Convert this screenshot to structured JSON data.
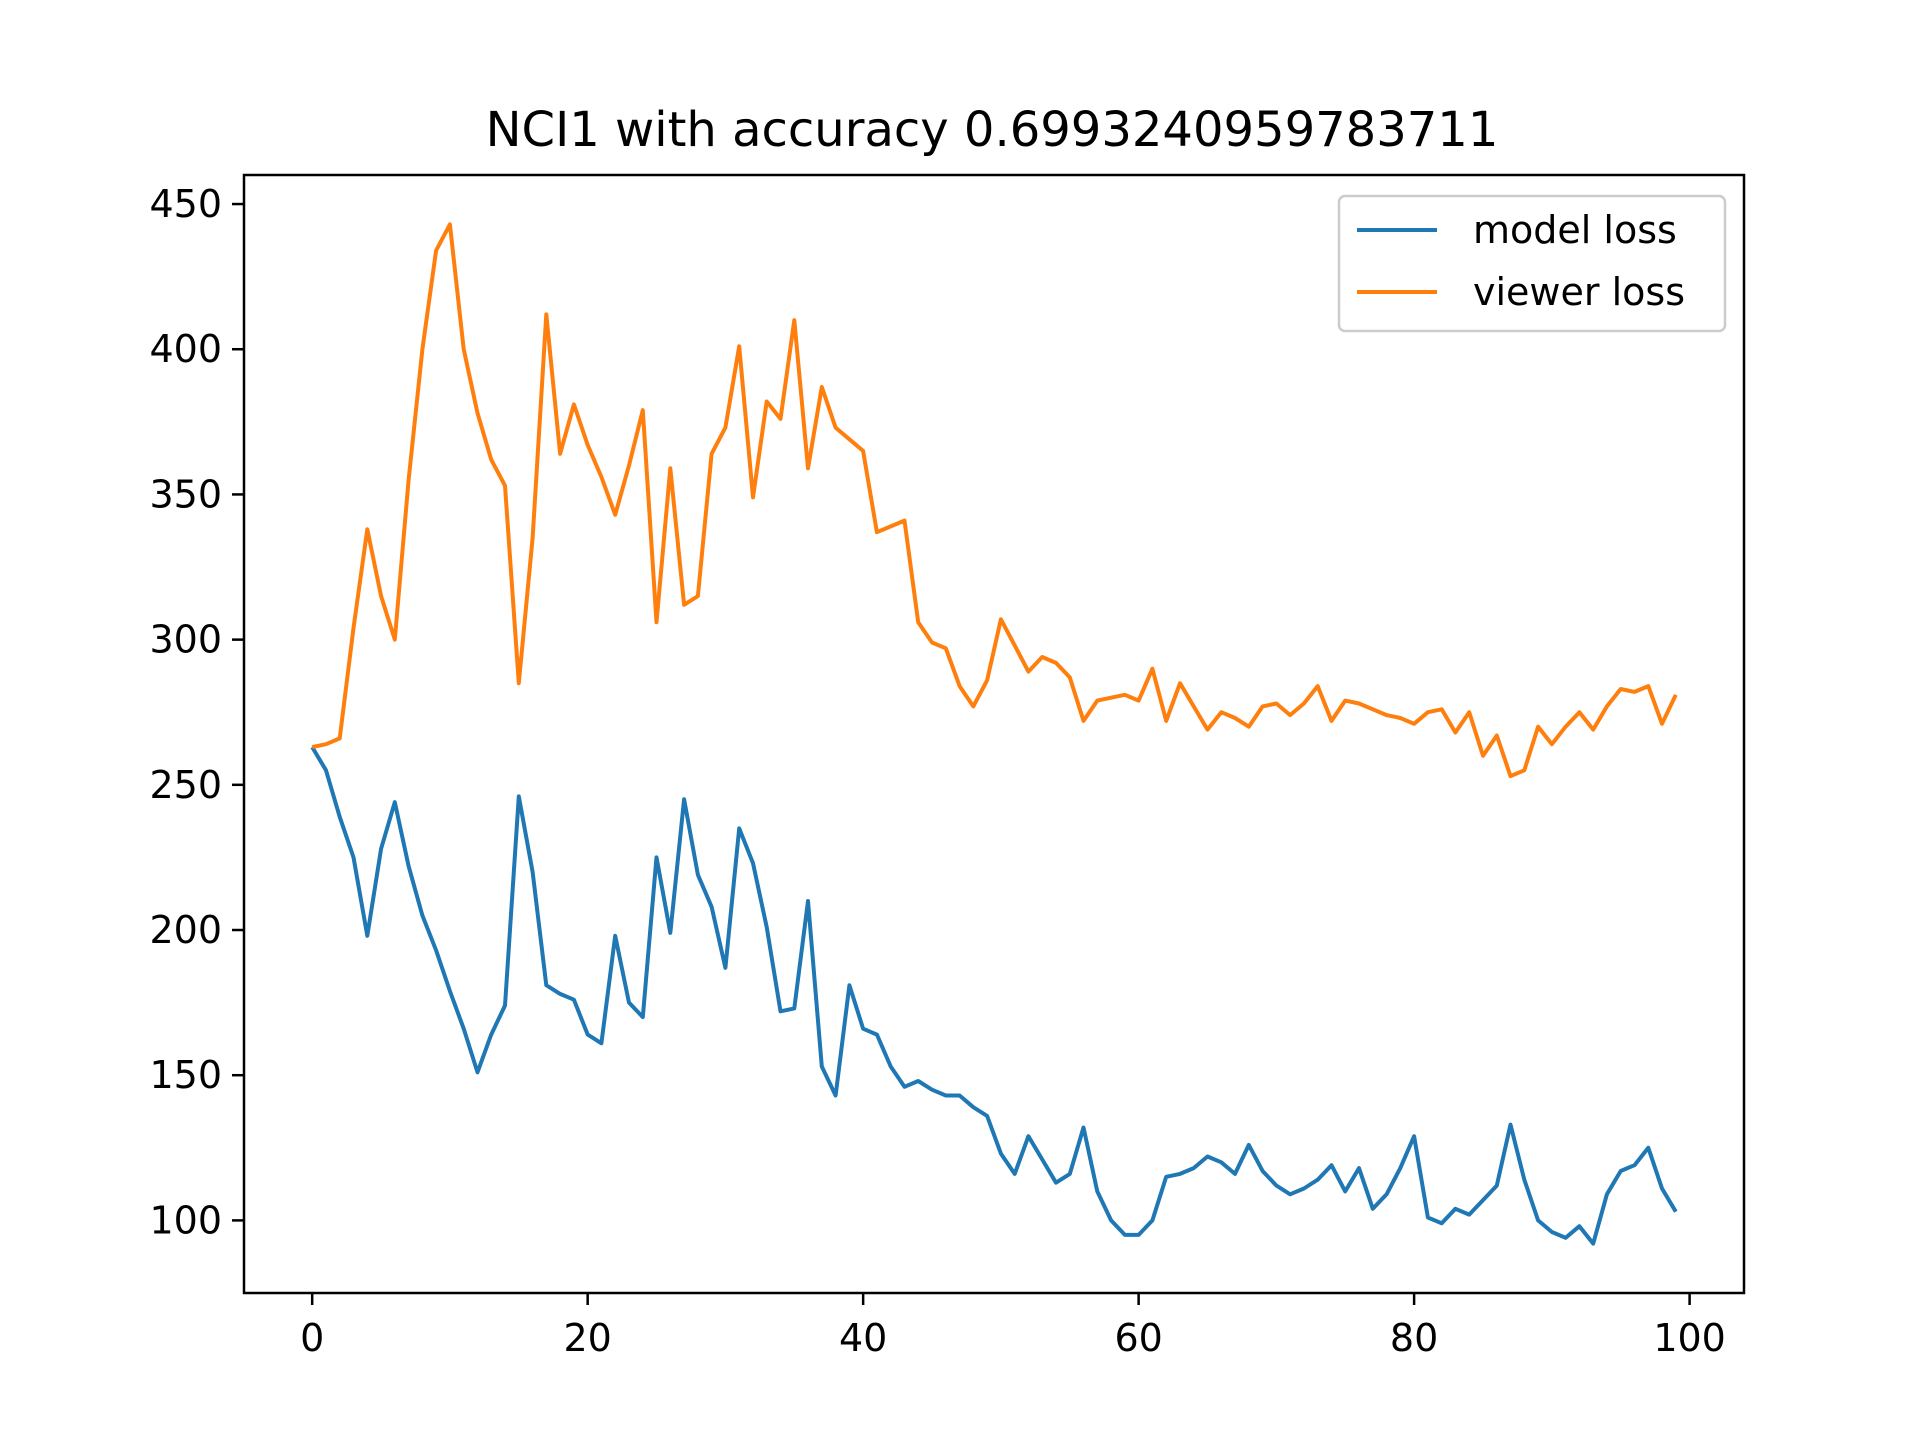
{
  "chart_data": {
    "type": "line",
    "title": "NCI1 with accuracy 0.6993240959783711",
    "xlabel": "",
    "ylabel": "",
    "xlim": [
      -4.95,
      103.95
    ],
    "ylim": [
      75,
      460
    ],
    "xticks": [
      0,
      20,
      40,
      60,
      80,
      100
    ],
    "yticks": [
      100,
      150,
      200,
      250,
      300,
      350,
      400,
      450
    ],
    "xtick_labels": [
      "0",
      "20",
      "40",
      "60",
      "80",
      "100"
    ],
    "ytick_labels": [
      "100",
      "150",
      "200",
      "250",
      "300",
      "350",
      "400",
      "450"
    ],
    "grid": false,
    "legend_position": "top-right",
    "x": [
      0,
      1,
      2,
      3,
      4,
      5,
      6,
      7,
      8,
      9,
      10,
      11,
      12,
      13,
      14,
      15,
      16,
      17,
      18,
      19,
      20,
      21,
      22,
      23,
      24,
      25,
      26,
      27,
      28,
      29,
      30,
      31,
      32,
      33,
      34,
      35,
      36,
      37,
      38,
      39,
      40,
      41,
      42,
      43,
      44,
      45,
      46,
      47,
      48,
      49,
      50,
      51,
      52,
      53,
      54,
      55,
      56,
      57,
      58,
      59,
      60,
      61,
      62,
      63,
      64,
      65,
      66,
      67,
      68,
      69,
      70,
      71,
      72,
      73,
      74,
      75,
      76,
      77,
      78,
      79,
      80,
      81,
      82,
      83,
      84,
      85,
      86,
      87,
      88,
      89,
      90,
      91,
      92,
      93,
      94,
      95,
      96,
      97,
      98,
      99
    ],
    "series": [
      {
        "name": "model loss",
        "color": "#1f77b4",
        "values": [
          263,
          255,
          239,
          225,
          198,
          228,
          244,
          222,
          205,
          193,
          179,
          166,
          151,
          164,
          174,
          246,
          220,
          181,
          178,
          176,
          164,
          161,
          198,
          175,
          170,
          225,
          199,
          245,
          219,
          208,
          187,
          235,
          223,
          201,
          172,
          173,
          210,
          153,
          143,
          181,
          166,
          164,
          153,
          146,
          148,
          145,
          143,
          143,
          139,
          136,
          123,
          116,
          129,
          121,
          113,
          116,
          132,
          110,
          100,
          95,
          95,
          100,
          115,
          116,
          118,
          122,
          120,
          116,
          126,
          117,
          112,
          109,
          111,
          114,
          119,
          110,
          118,
          104,
          109,
          118,
          129,
          101,
          99,
          104,
          102,
          107,
          112,
          133,
          114,
          100,
          96,
          94,
          98,
          92,
          109,
          117,
          119,
          125,
          111,
          103
        ]
      },
      {
        "name": "viewer loss",
        "color": "#ff7f0e",
        "values": [
          263,
          264,
          266,
          304,
          338,
          315,
          300,
          355,
          400,
          434,
          443,
          400,
          378,
          362,
          353,
          285,
          335,
          412,
          364,
          381,
          367,
          356,
          343,
          360,
          379,
          306,
          359,
          312,
          315,
          364,
          373,
          401,
          349,
          382,
          376,
          410,
          359,
          387,
          373,
          369,
          365,
          337,
          339,
          341,
          306,
          299,
          297,
          284,
          277,
          286,
          307,
          298,
          289,
          294,
          292,
          287,
          272,
          279,
          280,
          281,
          279,
          290,
          272,
          285,
          277,
          269,
          275,
          273,
          270,
          277,
          278,
          274,
          278,
          284,
          272,
          279,
          278,
          276,
          274,
          273,
          271,
          275,
          276,
          268,
          275,
          260,
          267,
          253,
          255,
          270,
          264,
          270,
          275,
          269,
          277,
          283,
          282,
          284,
          271,
          281
        ]
      }
    ]
  }
}
